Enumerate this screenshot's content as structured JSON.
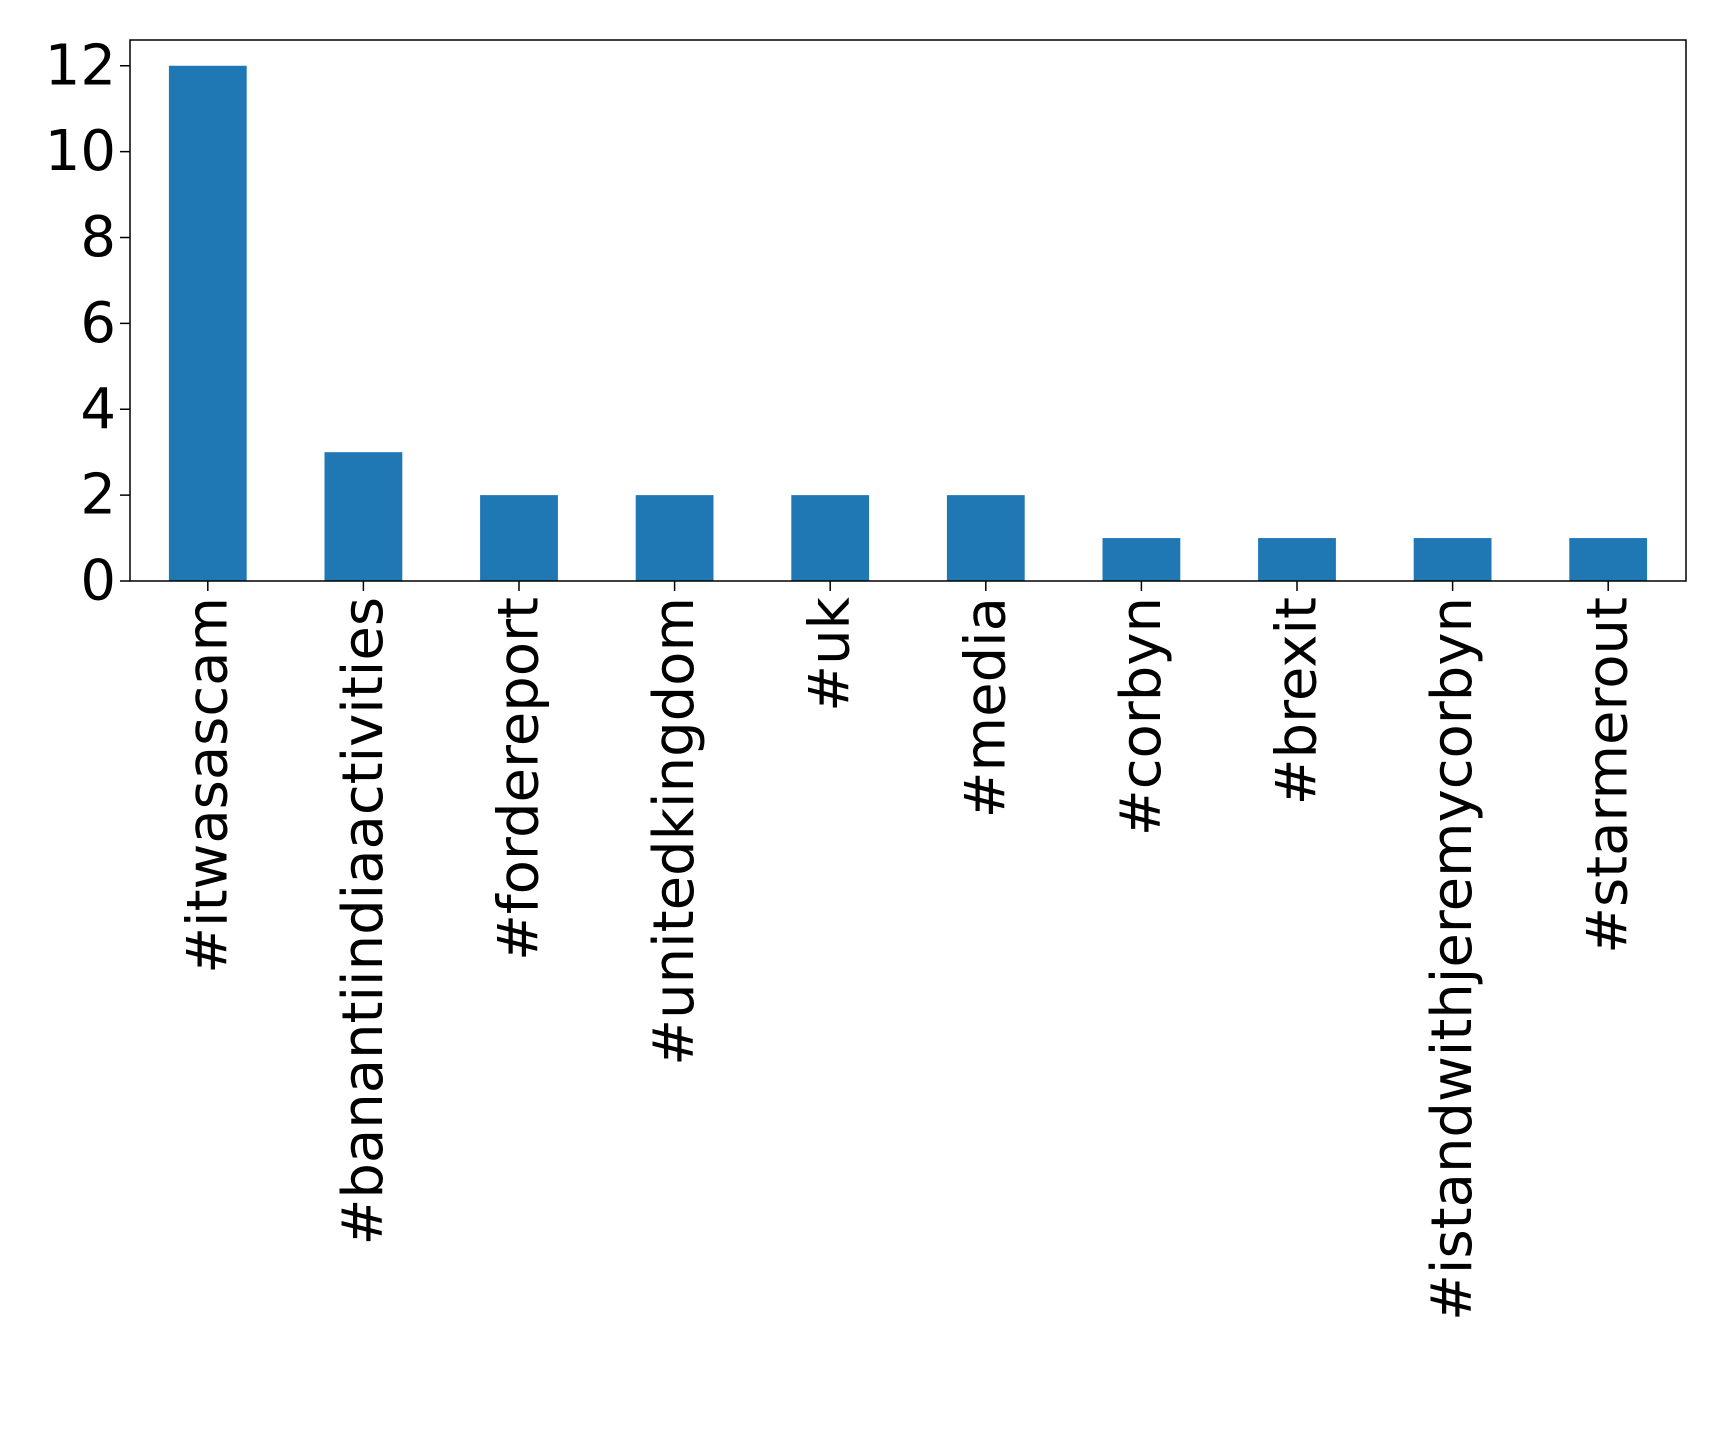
{
  "chart_data": {
    "type": "bar",
    "title": "",
    "xlabel": "",
    "ylabel": "",
    "categories": [
      "#itwasascam",
      "#banantiindiaactivities",
      "#fordereport",
      "#unitedkingdom",
      "#uk",
      "#media",
      "#corbyn",
      "#brexit",
      "#istandwithjeremycorbyn",
      "#starmerout"
    ],
    "values": [
      12,
      3,
      2,
      2,
      2,
      2,
      1,
      1,
      1,
      1
    ],
    "ylim": [
      0,
      12.6
    ],
    "yticks": [
      0,
      2,
      4,
      6,
      8,
      10,
      12
    ],
    "bar_color": "#1f77b4",
    "grid": false,
    "legend": "none",
    "xtick_rotation": "vertical"
  }
}
